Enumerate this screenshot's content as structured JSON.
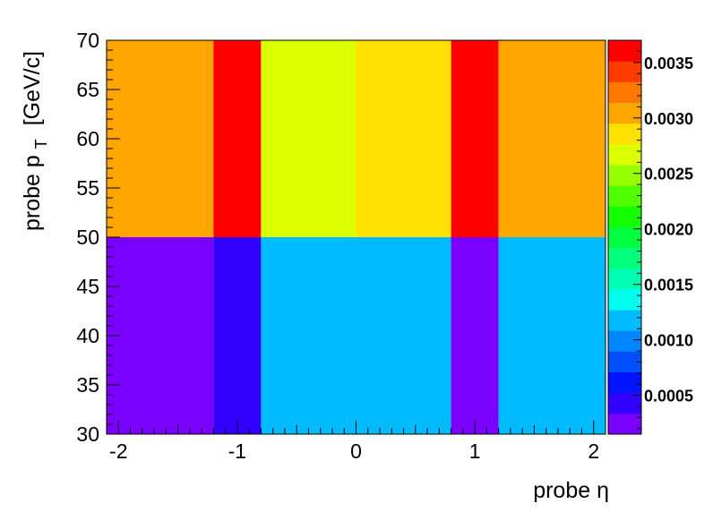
{
  "chart_data": {
    "type": "heatmap",
    "xlabel": "probe η",
    "ylabel_main": "probe p",
    "ylabel_sub": "T",
    "ylabel_unit": "[GeV/c]",
    "x_edges": [
      -2.1,
      -1.2,
      -0.8,
      0,
      0.8,
      1.2,
      2.1
    ],
    "y_edges": [
      30,
      50,
      70
    ],
    "xlim": [
      -2.1,
      2.1
    ],
    "ylim": [
      30,
      70
    ],
    "x_ticks": [
      {
        "v": -2,
        "label": "-2"
      },
      {
        "v": -1,
        "label": "-1"
      },
      {
        "v": 0,
        "label": "0"
      },
      {
        "v": 1,
        "label": "1"
      },
      {
        "v": 2,
        "label": "2"
      }
    ],
    "y_ticks": [
      {
        "v": 30,
        "label": "30"
      },
      {
        "v": 35,
        "label": "35"
      },
      {
        "v": 40,
        "label": "40"
      },
      {
        "v": 45,
        "label": "45"
      },
      {
        "v": 50,
        "label": "50"
      },
      {
        "v": 55,
        "label": "55"
      },
      {
        "v": 60,
        "label": "60"
      },
      {
        "v": 65,
        "label": "65"
      },
      {
        "v": 70,
        "label": "70"
      }
    ],
    "cells": [
      [
        0.00027,
        0.0004,
        0.00112,
        0.00112,
        0.00027,
        0.00112
      ],
      [
        0.0031,
        0.00355,
        0.0026,
        0.0028,
        0.00355,
        0.0031
      ]
    ],
    "zlim": [
      0.00015,
      0.0037
    ],
    "z_ticks": [
      {
        "v": 0.0005,
        "label": "0.0005"
      },
      {
        "v": 0.001,
        "label": "0.0010"
      },
      {
        "v": 0.0015,
        "label": "0.0015"
      },
      {
        "v": 0.002,
        "label": "0.0020"
      },
      {
        "v": 0.0025,
        "label": "0.0025"
      },
      {
        "v": 0.003,
        "label": "0.0030"
      },
      {
        "v": 0.0035,
        "label": "0.0035"
      }
    ],
    "palette": [
      "#7a00ff",
      "#3200ff",
      "#0014ff",
      "#0050ff",
      "#0086ff",
      "#00bcff",
      "#00ffee",
      "#00ffb4",
      "#00ff7a",
      "#00ff3e",
      "#14ff00",
      "#50ff00",
      "#96ff00",
      "#dcff00",
      "#ffe100",
      "#ffa500",
      "#ff7800",
      "#ff3c00",
      "#ff0000"
    ]
  }
}
